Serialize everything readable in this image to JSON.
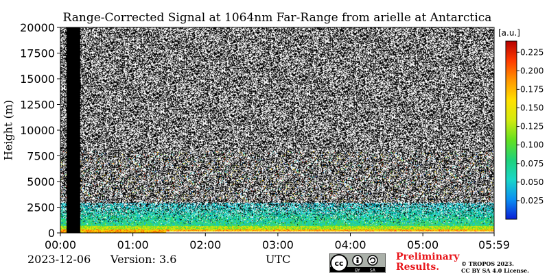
{
  "chart_data": {
    "type": "heatmap",
    "title": "Range-Corrected Signal at 1064nm Far-Range from arielle at Antarctica",
    "xlabel": "UTC",
    "ylabel": "Height (m)",
    "x_ticks": [
      "00:00",
      "01:00",
      "02:00",
      "03:00",
      "04:00",
      "05:00",
      "05:59"
    ],
    "x_range_hours": [
      0,
      5.983
    ],
    "y_ticks": [
      0,
      2500,
      5000,
      7500,
      10000,
      12500,
      15000,
      17500,
      20000
    ],
    "ylim": [
      0,
      20000
    ],
    "colorbar": {
      "unit": "[a.u.]",
      "ticks": [
        0.025,
        0.05,
        0.075,
        0.1,
        0.125,
        0.15,
        0.175,
        0.2,
        0.225
      ],
      "tick_labels": [
        "0.025",
        "0.050",
        "0.075",
        "0.100",
        "0.125",
        "0.150",
        "0.175",
        "0.200",
        "0.225"
      ],
      "range": [
        0,
        0.24
      ],
      "colormap": [
        "#0a1fd6",
        "#0a8ff2",
        "#19d6c8",
        "#1fd27a",
        "#63e020",
        "#d2ea10",
        "#ffe000",
        "#ff9800",
        "#ff3b00",
        "#b80000"
      ]
    },
    "data_gap_hours": [
      0.08,
      0.27
    ],
    "description_layers": [
      {
        "height_range_m": [
          0,
          600
        ],
        "level": "high"
      },
      {
        "height_range_m": [
          600,
          3000
        ],
        "level": "medium"
      },
      {
        "height_range_m": [
          3000,
          20000
        ],
        "level": "noise"
      }
    ]
  },
  "footer": {
    "date": "2023-12-06",
    "version": "Version: 3.6",
    "license_preliminary_1": "Preliminary",
    "license_preliminary_2": "Results.",
    "copyright_1": "© TROPOS 2023.",
    "copyright_2": "CC BY SA 4.0 License.",
    "cc_by": "BY",
    "cc_sa": "SA"
  }
}
